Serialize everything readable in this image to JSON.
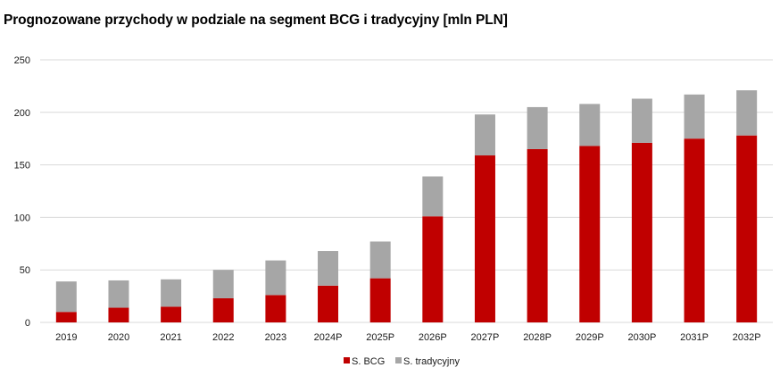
{
  "chart_data": {
    "type": "bar",
    "stacked": true,
    "title": "Prognozowane przychody w podziale na segment BCG i tradycyjny [mln PLN]",
    "xlabel": "",
    "ylabel": "",
    "ylim": [
      0,
      250
    ],
    "yticks": [
      0,
      50,
      100,
      150,
      200,
      250
    ],
    "grid": true,
    "legend_position": "bottom-center",
    "categories": [
      "2019",
      "2020",
      "2021",
      "2022",
      "2023",
      "2024P",
      "2025P",
      "2026P",
      "2027P",
      "2028P",
      "2029P",
      "2030P",
      "2031P",
      "2032P"
    ],
    "series": [
      {
        "name": "S. BCG",
        "color": "#c00000",
        "values": [
          10,
          14,
          15,
          23,
          26,
          35,
          42,
          101,
          159,
          165,
          168,
          171,
          175,
          178
        ]
      },
      {
        "name": "S. tradycyjny",
        "color": "#a6a6a6",
        "values": [
          29,
          26,
          26,
          27,
          33,
          33,
          35,
          38,
          39,
          40,
          40,
          42,
          42,
          43
        ]
      }
    ],
    "gridline_color": "#d9d9d9"
  }
}
